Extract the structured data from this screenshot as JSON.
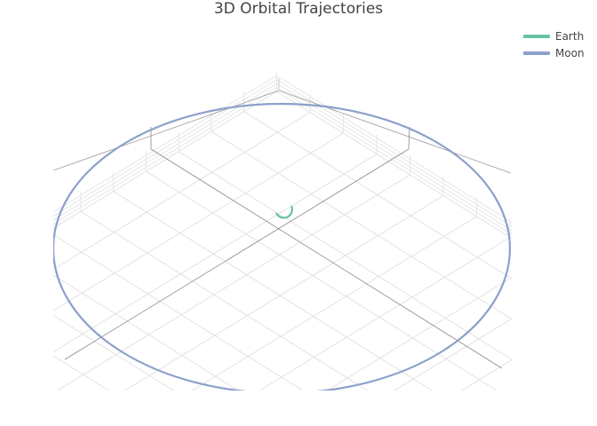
{
  "chart_data": {
    "type": "scatter3d",
    "title": "3D Orbital Trajectories",
    "legend_placement": "top-right",
    "grid": true,
    "series": [
      {
        "name": "Earth",
        "color": "#66c2a5",
        "mode": "lines"
      },
      {
        "name": "Moon",
        "color": "#8da0cb",
        "mode": "lines"
      }
    ]
  }
}
